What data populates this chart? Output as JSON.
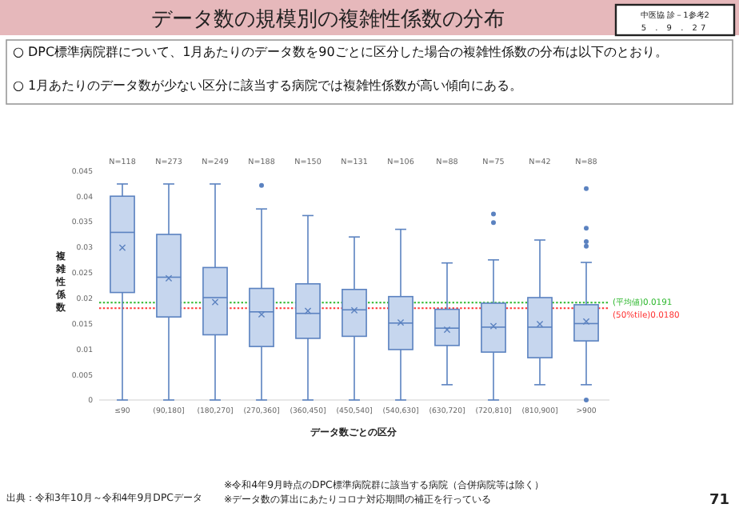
{
  "chart_data": {
    "type": "box",
    "title": "データ数の規模別の複雑性係数の分布",
    "annotations": [
      "中医協 診－1参考2",
      "5 . 9 . 27",
      "○ DPC標準病院群について、1月あたりのデータ数を90ごとに区分した場合の複雑性係数の分布は以下のとおり。",
      "○ 1月あたりのデータ数が少ない区分に該当する病院では複雑性係数が高い傾向にある。",
      "出典：令和3年10月～令和4年9月DPCデータ",
      "※令和4年9月時点のDPC標準病院群に該当する病院（合併病院等は除く）",
      "※データ数の算出にあたりコロナ対応期間の補正を行っている",
      "71",
      "N=118",
      "N=273",
      "N=249",
      "N=188",
      "N=150",
      "N=131",
      "N=106",
      "N=88",
      "N=75",
      "N=42",
      "N=88"
    ],
    "xlabel": "データ数ごとの区分",
    "ylabel": "複雑性係数",
    "categories": [
      "≤90",
      "(90,180]",
      "(180,270]",
      "(270,360]",
      "(360,450]",
      "(450,540]",
      "(540,630]",
      "(630,720]",
      "(720,810]",
      "(810,900]",
      ">900"
    ],
    "ylim": [
      0,
      0.045
    ],
    "yticks": [
      0,
      0.005,
      0.01,
      0.015,
      0.02,
      0.025,
      0.03,
      0.035,
      0.04,
      0.045
    ],
    "series": [
      {
        "color": "#5b82c0",
        "boxes": [
          {
            "low": 0,
            "q1": 0.0211,
            "median": 0.0329,
            "q3": 0.04,
            "high": 0.0424,
            "mean": 0.0299
          },
          {
            "low": 0,
            "q1": 0.0163,
            "median": 0.0241,
            "q3": 0.0325,
            "high": 0.0424,
            "mean": 0.0239
          },
          {
            "low": 0,
            "q1": 0.0128,
            "median": 0.0201,
            "q3": 0.026,
            "high": 0.0424,
            "mean": 0.0192
          },
          {
            "low": 0,
            "q1": 0.0105,
            "median": 0.0173,
            "q3": 0.0219,
            "high": 0.0375,
            "mean": 0.0168,
            "outliers": [
              0.0421
            ]
          },
          {
            "low": 0,
            "q1": 0.0121,
            "median": 0.017,
            "q3": 0.0228,
            "high": 0.0362,
            "mean": 0.0175
          },
          {
            "low": 0,
            "q1": 0.0125,
            "median": 0.0177,
            "q3": 0.0217,
            "high": 0.032,
            "mean": 0.0176
          },
          {
            "low": 0,
            "q1": 0.0099,
            "median": 0.0151,
            "q3": 0.0203,
            "high": 0.0335,
            "mean": 0.0152
          },
          {
            "low": 0.003,
            "q1": 0.0107,
            "median": 0.0141,
            "q3": 0.0178,
            "high": 0.0269,
            "mean": 0.0138
          },
          {
            "low": 0,
            "q1": 0.0094,
            "median": 0.0143,
            "q3": 0.019,
            "high": 0.0275,
            "mean": 0.0145,
            "outliers": [
              0.0365,
              0.0348
            ]
          },
          {
            "low": 0.003,
            "q1": 0.0083,
            "median": 0.0143,
            "q3": 0.0201,
            "high": 0.0314,
            "mean": 0.0149
          },
          {
            "low": 0.003,
            "q1": 0.0116,
            "median": 0.015,
            "q3": 0.0187,
            "high": 0.027,
            "mean": 0.0154,
            "outliers": [
              0.0415,
              0.0337,
              0.0311,
              0.0302,
              0
            ]
          }
        ]
      }
    ],
    "ref_lines": [
      {
        "axis": "y",
        "value": 0.0191,
        "label": "(平均値)0.0191",
        "color": "#2eb82e",
        "line_style": "dotted"
      },
      {
        "axis": "y",
        "value": 0.018,
        "label": "(50%tile)0.0180",
        "color": "#ff3333",
        "line_style": "dotted"
      }
    ]
  }
}
